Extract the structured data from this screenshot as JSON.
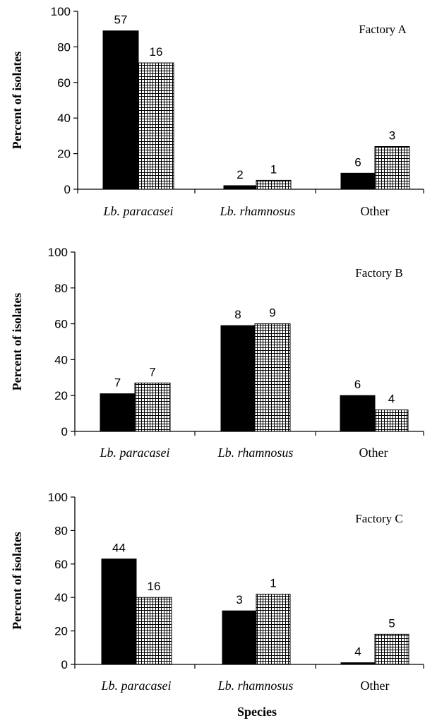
{
  "chart_data": [
    {
      "type": "bar",
      "title": "Factory A",
      "ylabel": "Percent of isolates",
      "xlabel": "",
      "ylim": [
        0,
        100
      ],
      "yticks": [
        "0",
        "20",
        "40",
        "60",
        "80",
        "100"
      ],
      "categories": [
        "Lb. paracasei",
        "Lb. rhamnosus",
        "Other"
      ],
      "series": [
        {
          "name": "solid",
          "pattern": "solid",
          "values": [
            89,
            2,
            9
          ],
          "labels": [
            "57",
            "2",
            "6"
          ]
        },
        {
          "name": "hatched",
          "pattern": "grid",
          "values": [
            71,
            5,
            24
          ],
          "labels": [
            "16",
            "1",
            "3"
          ]
        }
      ]
    },
    {
      "type": "bar",
      "title": "Factory B",
      "ylabel": "Percent of isolates",
      "xlabel": "",
      "ylim": [
        0,
        100
      ],
      "yticks": [
        "0",
        "20",
        "40",
        "60",
        "80",
        "100"
      ],
      "categories": [
        "Lb. paracasei",
        "Lb. rhamnosus",
        "Other"
      ],
      "series": [
        {
          "name": "solid",
          "pattern": "solid",
          "values": [
            21,
            59,
            20
          ],
          "labels": [
            "7",
            "8",
            "6"
          ]
        },
        {
          "name": "hatched",
          "pattern": "grid",
          "values": [
            27,
            60,
            12
          ],
          "labels": [
            "7",
            "9",
            "4"
          ]
        }
      ]
    },
    {
      "type": "bar",
      "title": "Factory C",
      "ylabel": "Percent of isolates",
      "xlabel": "Species",
      "ylim": [
        0,
        100
      ],
      "yticks": [
        "0",
        "20",
        "40",
        "60",
        "80",
        "100"
      ],
      "categories": [
        "Lb. paracasei",
        "Lb. rhamnosus",
        "Other"
      ],
      "series": [
        {
          "name": "solid",
          "pattern": "solid",
          "values": [
            63,
            32,
            1
          ],
          "labels": [
            "44",
            "3",
            "4"
          ]
        },
        {
          "name": "hatched",
          "pattern": "grid",
          "values": [
            40,
            42,
            18
          ],
          "labels": [
            "16",
            "1",
            "5"
          ]
        }
      ]
    }
  ],
  "colors": {
    "bar_solid": "#000000",
    "hatch": "#000000",
    "axis": "#000000"
  }
}
